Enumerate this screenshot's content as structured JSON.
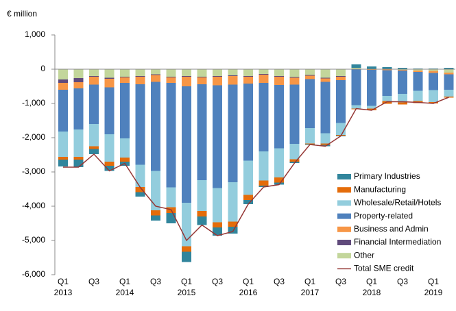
{
  "chart_data": {
    "type": "stacked_bar",
    "y_axis_label": "€ million",
    "categories": [
      "Q1",
      null,
      "Q3",
      null,
      "Q1",
      null,
      "Q3",
      null,
      "Q1",
      null,
      "Q3",
      null,
      "Q1",
      null,
      "Q3",
      null,
      "Q1",
      null,
      "Q3",
      null,
      "Q1",
      null,
      "Q3",
      null,
      "Q1",
      null
    ],
    "year_labels": [
      "2013",
      null,
      null,
      null,
      "2014",
      null,
      null,
      null,
      "2015",
      null,
      null,
      null,
      "2016",
      null,
      null,
      null,
      "2017",
      null,
      null,
      null,
      "2018",
      null,
      null,
      null,
      "2019",
      null
    ],
    "ylim": [
      -6000,
      1000
    ],
    "yticks": [
      {
        "value": -6000,
        "label": "-6,000"
      },
      {
        "value": -5000,
        "label": "-5,000"
      },
      {
        "value": -4000,
        "label": "-4,000"
      },
      {
        "value": -3000,
        "label": "-3,000"
      },
      {
        "value": -2000,
        "label": "-2,000"
      },
      {
        "value": -1000,
        "label": "-1,000"
      },
      0,
      {
        "value": 1000,
        "label": "1,000"
      }
    ],
    "grid": false,
    "legend_position": "lower right",
    "series": [
      {
        "name": "Primary Industries",
        "color": "#31859c",
        "values": [
          -200,
          -220,
          -150,
          -150,
          -120,
          -130,
          -150,
          -300,
          -300,
          -250,
          -240,
          -200,
          -120,
          -40,
          -60,
          -40,
          -20,
          -40,
          -20,
          100,
          80,
          60,
          40,
          20,
          20,
          40
        ]
      },
      {
        "name": "Manufacturing",
        "color": "#e46c0a",
        "values": [
          -80,
          -80,
          -80,
          -120,
          -120,
          -150,
          -150,
          -170,
          -160,
          -160,
          -150,
          -150,
          -150,
          -150,
          -150,
          -70,
          -20,
          -40,
          -20,
          -20,
          -50,
          -80,
          -60,
          -60,
          -40,
          -30
        ]
      },
      {
        "name": "Wholesale/Retail/Hotels",
        "color": "#93cddd",
        "values": [
          -740,
          -800,
          -650,
          -800,
          -560,
          -650,
          -1150,
          -580,
          -1270,
          -900,
          -1000,
          -1150,
          -1000,
          -850,
          -850,
          -450,
          -450,
          -300,
          -350,
          -100,
          -80,
          -150,
          -250,
          -300,
          -350,
          -200
        ]
      },
      {
        "name": "Property-related",
        "color": "#4f81bd",
        "values": [
          -1220,
          -1200,
          -1150,
          -1370,
          -1620,
          -2350,
          -2600,
          -3050,
          -3400,
          -2800,
          -3000,
          -2850,
          -2250,
          -2000,
          -1850,
          -1730,
          -1430,
          -1500,
          -1250,
          -1050,
          -1050,
          -750,
          -680,
          -550,
          -500,
          -450
        ]
      },
      {
        "name": "Business and Admin",
        "color": "#f79646",
        "values": [
          -200,
          -180,
          -230,
          -250,
          -160,
          -220,
          -200,
          -160,
          -280,
          -200,
          -250,
          -250,
          -200,
          -240,
          -240,
          -200,
          -100,
          -100,
          -100,
          0,
          -20,
          -30,
          -20,
          -40,
          -60,
          -50
        ]
      },
      {
        "name": "Financial Intermediation",
        "color": "#604a7b",
        "values": [
          -100,
          -120,
          -20,
          -30,
          -20,
          -20,
          -20,
          -20,
          -20,
          -20,
          -20,
          -20,
          -20,
          -20,
          -20,
          -20,
          -20,
          -20,
          -20,
          0,
          0,
          0,
          0,
          0,
          0,
          0
        ]
      },
      {
        "name": "Other",
        "color": "#c3d69b",
        "values": [
          -300,
          -260,
          -200,
          -250,
          -220,
          -200,
          -150,
          -220,
          -200,
          -220,
          -200,
          -180,
          -200,
          -140,
          -200,
          -230,
          -170,
          -250,
          -200,
          40,
          0,
          0,
          -20,
          -40,
          -50,
          -100
        ]
      }
    ],
    "line": {
      "name": "Total SME credit",
      "color": "#953735",
      "values": [
        -2860,
        -2860,
        -2480,
        -2970,
        -2750,
        -3450,
        -4000,
        -4100,
        -5000,
        -4550,
        -4860,
        -4740,
        -3940,
        -3440,
        -3370,
        -2740,
        -2200,
        -2250,
        -1950,
        -1150,
        -1200,
        -950,
        -950,
        -970,
        -1000,
        -820
      ]
    }
  }
}
